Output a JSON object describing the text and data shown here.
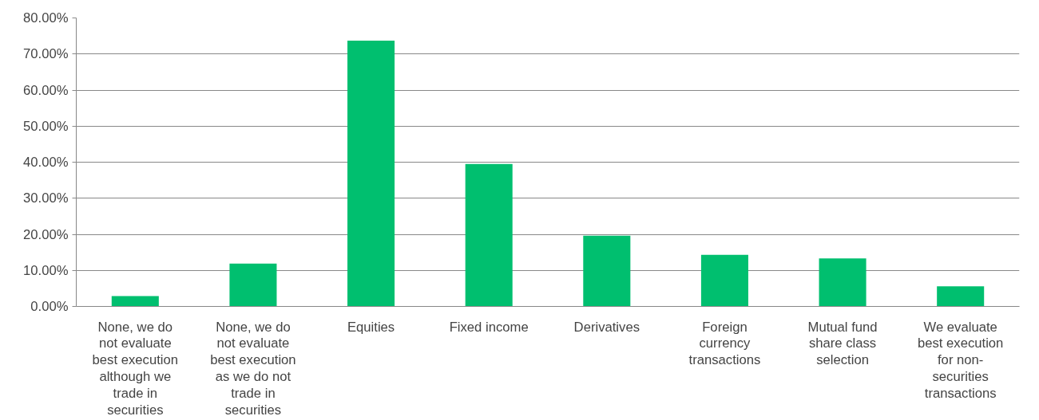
{
  "chart_data": {
    "type": "bar",
    "categories": [
      "None, we do not evaluate best execution although we trade in securities",
      "None, we do not evaluate best execution as we do not trade in securities",
      "Equities",
      "Fixed income",
      "Derivatives",
      "Foreign currency transactions",
      "Mutual fund share class selection",
      "We evaluate best execution for non-securities transactions"
    ],
    "values": [
      2.9,
      11.9,
      73.7,
      39.5,
      19.6,
      14.3,
      13.3,
      5.6
    ],
    "color": "#00bf6f",
    "ylim": [
      0,
      80
    ],
    "yticks": [
      {
        "value": 0,
        "label": "0.00%"
      },
      {
        "value": 10,
        "label": "10.00%"
      },
      {
        "value": 20,
        "label": "20.00%"
      },
      {
        "value": 30,
        "label": "30.00%"
      },
      {
        "value": 40,
        "label": "40.00%"
      },
      {
        "value": 50,
        "label": "50.00%"
      },
      {
        "value": 60,
        "label": "60.00%"
      },
      {
        "value": 70,
        "label": "70.00%"
      },
      {
        "value": 80,
        "label": "80.00%"
      }
    ],
    "grid": "y"
  }
}
